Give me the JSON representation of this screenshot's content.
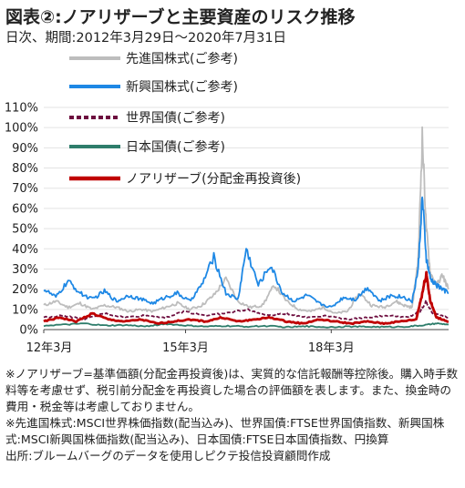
{
  "title": "図表②:ノアリザーブと主要資産のリスク推移",
  "subtitle": "日次、期間:2012年3月29日〜2020年7月31日",
  "chart_data": {
    "type": "line",
    "x_range": [
      "2012-03-29",
      "2020-07-31"
    ],
    "x_ticks": [
      "12年3月",
      "15年3月",
      "18年3月"
    ],
    "y_ticks": [
      "0%",
      "10%",
      "20%",
      "30%",
      "40%",
      "50%",
      "60%",
      "70%",
      "80%",
      "90%",
      "100%",
      "110%"
    ],
    "ylim": [
      0,
      110
    ],
    "series": [
      {
        "name": "先進国株式(ご参考)",
        "color": "#bdbdbd",
        "style": "solid",
        "points": [
          [
            0,
            12
          ],
          [
            0.03,
            14
          ],
          [
            0.06,
            11
          ],
          [
            0.09,
            13
          ],
          [
            0.12,
            10
          ],
          [
            0.15,
            12
          ],
          [
            0.18,
            11
          ],
          [
            0.21,
            9
          ],
          [
            0.24,
            10
          ],
          [
            0.27,
            9
          ],
          [
            0.3,
            11
          ],
          [
            0.33,
            13
          ],
          [
            0.36,
            10
          ],
          [
            0.39,
            12
          ],
          [
            0.42,
            17
          ],
          [
            0.45,
            25
          ],
          [
            0.48,
            14
          ],
          [
            0.51,
            11
          ],
          [
            0.54,
            12
          ],
          [
            0.57,
            22
          ],
          [
            0.6,
            14
          ],
          [
            0.63,
            10
          ],
          [
            0.66,
            9
          ],
          [
            0.69,
            11
          ],
          [
            0.72,
            8
          ],
          [
            0.75,
            9
          ],
          [
            0.78,
            18
          ],
          [
            0.81,
            12
          ],
          [
            0.84,
            11
          ],
          [
            0.87,
            14
          ],
          [
            0.89,
            12
          ],
          [
            0.91,
            11
          ],
          [
            0.925,
            35
          ],
          [
            0.935,
            96
          ],
          [
            0.945,
            50
          ],
          [
            0.955,
            28
          ],
          [
            0.97,
            22
          ],
          [
            0.985,
            27
          ],
          [
            1.0,
            20
          ]
        ]
      },
      {
        "name": "新興国株式(ご参考)",
        "color": "#1e88e5",
        "style": "solid",
        "points": [
          [
            0,
            20
          ],
          [
            0.03,
            16
          ],
          [
            0.06,
            24
          ],
          [
            0.09,
            18
          ],
          [
            0.12,
            15
          ],
          [
            0.15,
            19
          ],
          [
            0.18,
            14
          ],
          [
            0.21,
            17
          ],
          [
            0.24,
            15
          ],
          [
            0.27,
            13
          ],
          [
            0.3,
            16
          ],
          [
            0.33,
            18
          ],
          [
            0.36,
            14
          ],
          [
            0.39,
            22
          ],
          [
            0.42,
            36
          ],
          [
            0.45,
            18
          ],
          [
            0.48,
            15
          ],
          [
            0.5,
            40
          ],
          [
            0.53,
            22
          ],
          [
            0.56,
            32
          ],
          [
            0.59,
            18
          ],
          [
            0.62,
            14
          ],
          [
            0.65,
            17
          ],
          [
            0.68,
            13
          ],
          [
            0.71,
            11
          ],
          [
            0.74,
            16
          ],
          [
            0.77,
            15
          ],
          [
            0.8,
            21
          ],
          [
            0.83,
            14
          ],
          [
            0.86,
            17
          ],
          [
            0.89,
            16
          ],
          [
            0.91,
            14
          ],
          [
            0.925,
            30
          ],
          [
            0.935,
            66
          ],
          [
            0.945,
            35
          ],
          [
            0.955,
            25
          ],
          [
            0.97,
            22
          ],
          [
            0.985,
            20
          ],
          [
            1.0,
            18
          ]
        ]
      },
      {
        "name": "世界国債(ご参考)",
        "color": "#6d0e3f",
        "style": "dashed",
        "points": [
          [
            0,
            6
          ],
          [
            0.05,
            7
          ],
          [
            0.1,
            5
          ],
          [
            0.15,
            8
          ],
          [
            0.2,
            6
          ],
          [
            0.25,
            7
          ],
          [
            0.3,
            6
          ],
          [
            0.35,
            9
          ],
          [
            0.4,
            7
          ],
          [
            0.45,
            8
          ],
          [
            0.5,
            10
          ],
          [
            0.55,
            7
          ],
          [
            0.6,
            8
          ],
          [
            0.65,
            6
          ],
          [
            0.7,
            7
          ],
          [
            0.75,
            5
          ],
          [
            0.8,
            6
          ],
          [
            0.85,
            7
          ],
          [
            0.9,
            6
          ],
          [
            0.93,
            9
          ],
          [
            0.945,
            14
          ],
          [
            0.96,
            8
          ],
          [
            1.0,
            6
          ]
        ]
      },
      {
        "name": "日本国債(ご参考)",
        "color": "#2e7d6b",
        "style": "solid",
        "points": [
          [
            0,
            2
          ],
          [
            0.06,
            2.5
          ],
          [
            0.1,
            3
          ],
          [
            0.15,
            2
          ],
          [
            0.2,
            2.2
          ],
          [
            0.25,
            1.6
          ],
          [
            0.3,
            2.8
          ],
          [
            0.35,
            2
          ],
          [
            0.4,
            1.5
          ],
          [
            0.45,
            1.8
          ],
          [
            0.5,
            1.5
          ],
          [
            0.55,
            1.8
          ],
          [
            0.6,
            1.2
          ],
          [
            0.65,
            1.6
          ],
          [
            0.7,
            1.2
          ],
          [
            0.75,
            1.5
          ],
          [
            0.8,
            1.4
          ],
          [
            0.85,
            1.3
          ],
          [
            0.9,
            1.5
          ],
          [
            0.94,
            2.2
          ],
          [
            0.97,
            3
          ],
          [
            1.0,
            2.5
          ]
        ]
      },
      {
        "name": "ノアリザーブ(分配金再投資後)",
        "color": "#c00000",
        "style": "solid",
        "points": [
          [
            0,
            4
          ],
          [
            0.04,
            6
          ],
          [
            0.08,
            4
          ],
          [
            0.12,
            8
          ],
          [
            0.16,
            5
          ],
          [
            0.2,
            4
          ],
          [
            0.24,
            5
          ],
          [
            0.28,
            3
          ],
          [
            0.32,
            4
          ],
          [
            0.36,
            5
          ],
          [
            0.4,
            4
          ],
          [
            0.44,
            6
          ],
          [
            0.48,
            4
          ],
          [
            0.52,
            5
          ],
          [
            0.56,
            6
          ],
          [
            0.6,
            4
          ],
          [
            0.64,
            3
          ],
          [
            0.68,
            5
          ],
          [
            0.72,
            4
          ],
          [
            0.76,
            3
          ],
          [
            0.8,
            4
          ],
          [
            0.84,
            3
          ],
          [
            0.88,
            4
          ],
          [
            0.92,
            5
          ],
          [
            0.935,
            18
          ],
          [
            0.945,
            28
          ],
          [
            0.955,
            14
          ],
          [
            0.97,
            6
          ],
          [
            1.0,
            4
          ]
        ]
      }
    ]
  },
  "notes": [
    "※ノアリザーブ=基準価額(分配金再投資後)は、実質的な信託報酬等控除後。購入時手数料等を考慮せず、税引前分配金を再投資した場合の評価額を表します。また、換金時の費用・税金等は考慮しておりません。",
    "※先進国株式:MSCI世界株価指数(配当込み)、世界国債:FTSE世界国債指数、新興国株式:MSCI新興国株価指数(配当込み)、日本国債:FTSE日本国債指数、円換算",
    "出所:ブルームバーグのデータを使用しピクテ投信投資顧問作成"
  ]
}
